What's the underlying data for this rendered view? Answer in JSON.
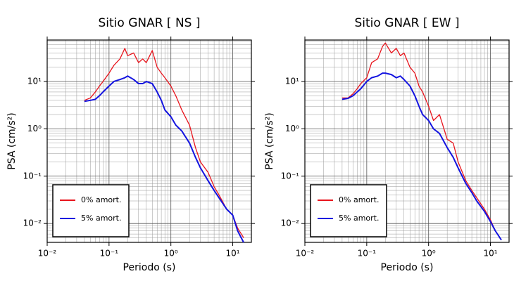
{
  "chart_data": [
    {
      "type": "line",
      "title": "Sitio GNAR [ NS ]",
      "xlabel": "Periodo (s)",
      "ylabel": "PSA (cm/s²)",
      "xscale": "log",
      "yscale": "log",
      "grid": true,
      "legend": "lower left",
      "xlim": [
        0.01,
        20
      ],
      "ylim": [
        0.004,
        75
      ],
      "xticks": [
        {
          "value": 0.01,
          "label": "10⁻²"
        },
        {
          "value": 0.1,
          "label": "10⁻¹"
        },
        {
          "value": 1,
          "label": "10⁰"
        },
        {
          "value": 10,
          "label": "10¹"
        }
      ],
      "yticks": [
        {
          "value": 0.01,
          "label": "10⁻²"
        },
        {
          "value": 0.1,
          "label": "10⁻¹"
        },
        {
          "value": 1,
          "label": "10⁰"
        },
        {
          "value": 10,
          "label": "10¹"
        }
      ],
      "x": [
        0.04,
        0.05,
        0.06,
        0.07,
        0.08,
        0.1,
        0.12,
        0.15,
        0.18,
        0.2,
        0.25,
        0.3,
        0.35,
        0.4,
        0.5,
        0.6,
        0.7,
        0.8,
        1.0,
        1.2,
        1.5,
        2,
        2.5,
        3,
        4,
        5,
        6,
        8,
        10,
        12,
        15
      ],
      "series": [
        {
          "name": "0% amort.",
          "color": "#e8141c",
          "values": [
            4,
            4.5,
            6,
            8,
            10,
            15,
            22,
            30,
            50,
            35,
            40,
            25,
            30,
            25,
            45,
            20,
            15,
            12,
            8,
            5,
            2.5,
            1.2,
            0.4,
            0.2,
            0.12,
            0.06,
            0.04,
            0.02,
            0.015,
            0.008,
            0.005
          ]
        },
        {
          "name": "5% amort.",
          "color": "#1414e0",
          "values": [
            3.8,
            4,
            4.2,
            5,
            6,
            8,
            10,
            11,
            12,
            13,
            11,
            9,
            9,
            10,
            9,
            6,
            4,
            2.5,
            1.8,
            1.2,
            0.9,
            0.5,
            0.25,
            0.15,
            0.08,
            0.05,
            0.035,
            0.02,
            0.015,
            0.007,
            0.004
          ]
        }
      ]
    },
    {
      "type": "line",
      "title": "Sitio GNAR [ EW ]",
      "xlabel": "Periodo (s)",
      "ylabel": "PSA (cm/s²)",
      "xscale": "log",
      "yscale": "log",
      "grid": true,
      "legend": "lower left",
      "xlim": [
        0.01,
        20
      ],
      "ylim": [
        0.004,
        75
      ],
      "xticks": [
        {
          "value": 0.01,
          "label": "10⁻²"
        },
        {
          "value": 0.1,
          "label": "10⁻¹"
        },
        {
          "value": 1,
          "label": "10⁰"
        },
        {
          "value": 10,
          "label": "10¹"
        }
      ],
      "yticks": [
        {
          "value": 0.01,
          "label": "10⁻²"
        },
        {
          "value": 0.1,
          "label": "10⁻¹"
        },
        {
          "value": 1,
          "label": "10⁰"
        },
        {
          "value": 10,
          "label": "10¹"
        }
      ],
      "x": [
        0.04,
        0.05,
        0.06,
        0.07,
        0.08,
        0.1,
        0.12,
        0.15,
        0.18,
        0.2,
        0.25,
        0.3,
        0.35,
        0.4,
        0.5,
        0.6,
        0.7,
        0.8,
        1.0,
        1.2,
        1.5,
        2,
        2.5,
        3,
        4,
        5,
        6,
        8,
        10,
        12,
        15
      ],
      "series": [
        {
          "name": "0% amort.",
          "color": "#e8141c",
          "values": [
            4.5,
            4.5,
            5.5,
            7,
            9,
            12,
            25,
            30,
            55,
            65,
            40,
            50,
            35,
            40,
            20,
            15,
            8,
            6,
            3,
            1.5,
            2,
            0.6,
            0.5,
            0.2,
            0.08,
            0.05,
            0.035,
            0.02,
            0.012,
            0.007,
            0.0045
          ]
        },
        {
          "name": "5% amort.",
          "color": "#1414e0",
          "values": [
            4.2,
            4.4,
            5,
            6,
            7,
            10,
            12,
            13,
            15,
            15,
            14,
            12,
            13,
            11,
            8,
            5,
            3,
            2,
            1.5,
            1,
            0.8,
            0.4,
            0.25,
            0.15,
            0.07,
            0.045,
            0.03,
            0.018,
            0.011,
            0.007,
            0.0045
          ]
        }
      ]
    }
  ]
}
